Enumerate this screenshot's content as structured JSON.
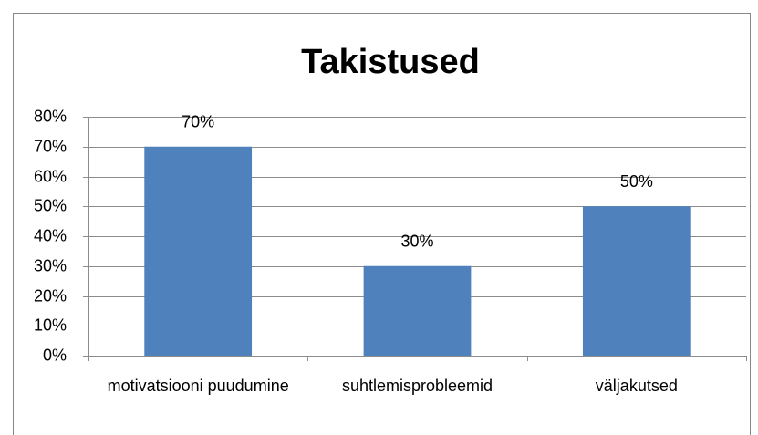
{
  "chart_data": {
    "type": "bar",
    "title": "Takistused",
    "categories": [
      "motivatsiooni puudumine",
      "suhtlemisprobleemid",
      "väljakutsed"
    ],
    "values": [
      70,
      30,
      50
    ],
    "value_labels": [
      "70%",
      "30%",
      "50%"
    ],
    "color": "#4f81bd",
    "ylim": [
      0,
      80
    ],
    "yticks": [
      {
        "value": 0,
        "label": "0%"
      },
      {
        "value": 10,
        "label": "10%"
      },
      {
        "value": 20,
        "label": "20%"
      },
      {
        "value": 30,
        "label": "30%"
      },
      {
        "value": 40,
        "label": "40%"
      },
      {
        "value": 50,
        "label": "50%"
      },
      {
        "value": 60,
        "label": "60%"
      },
      {
        "value": 70,
        "label": "70%"
      },
      {
        "value": 80,
        "label": "80%"
      }
    ],
    "grid": true
  }
}
